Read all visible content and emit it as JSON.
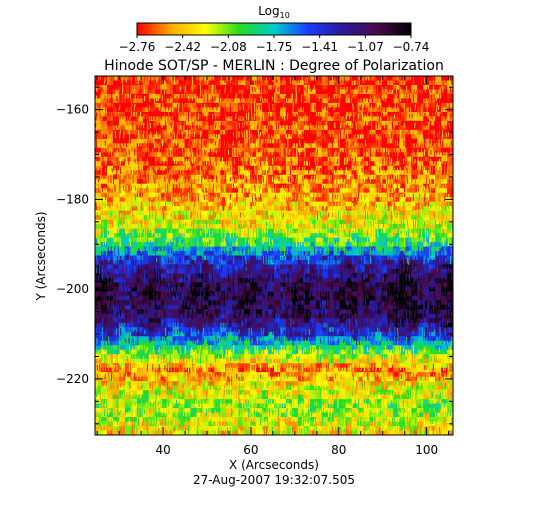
{
  "chart_data": {
    "type": "heatmap",
    "title": "Hinode SOT/SP - MERLIN : Degree of Polarization",
    "xlabel": "X (Arcseconds)",
    "ylabel": "Y (Arcseconds)",
    "timestamp": "27-Aug-2007 19:32:07.505",
    "colorbar": {
      "title_base": "Log",
      "title_sub": "10",
      "ticks": [
        "-2.76",
        "-2.42",
        "-2.08",
        "-1.75",
        "-1.41",
        "-1.07",
        "-0.74"
      ],
      "range": [
        -2.76,
        -0.74
      ]
    },
    "x_axis": {
      "range": [
        24.5,
        106
      ],
      "ticks": [
        40,
        60,
        80,
        100
      ]
    },
    "y_axis": {
      "range": [
        -232.5,
        -152.5
      ],
      "ticks": [
        -160,
        -180,
        -200,
        -220
      ]
    },
    "value_profile_by_y": [
      {
        "y": -153,
        "value": -2.72
      },
      {
        "y": -170,
        "value": -2.65
      },
      {
        "y": -180,
        "value": -2.45
      },
      {
        "y": -186,
        "value": -2.25
      },
      {
        "y": -190,
        "value": -1.9
      },
      {
        "y": -194,
        "value": -1.35
      },
      {
        "y": -200,
        "value": -0.95
      },
      {
        "y": -206,
        "value": -1.05
      },
      {
        "y": -210,
        "value": -1.45
      },
      {
        "y": -214,
        "value": -2.05
      },
      {
        "y": -218,
        "value": -2.55
      },
      {
        "y": -222,
        "value": -2.3
      },
      {
        "y": -226,
        "value": -2.1
      },
      {
        "y": -232,
        "value": -2.35
      }
    ],
    "colors": {
      "scale": [
        "#ff0000",
        "#ffaa00",
        "#ffff00",
        "#22dd22",
        "#00cccc",
        "#1a3cff",
        "#2a1a9a",
        "#4a0a4a",
        "#000000"
      ]
    }
  }
}
